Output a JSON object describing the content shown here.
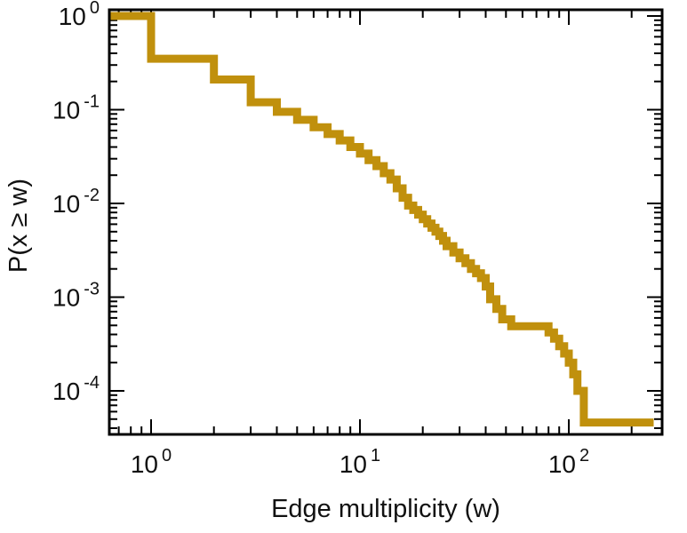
{
  "figure": {
    "background": "#ffffff",
    "frame_color": "#000000"
  },
  "chart_data": {
    "type": "line",
    "subtype": "ccdf-staircase",
    "title": "",
    "xlabel": "Edge multiplicity (w)",
    "ylabel": "P(x ≥ w)",
    "x_scale": "log",
    "y_scale": "log",
    "xlim": [
      0.63,
      283
    ],
    "ylim": [
      3.4e-05,
      1.19
    ],
    "grid": false,
    "legend": null,
    "line_color": "#c0900d",
    "line_width": 9,
    "x_ticks": [
      {
        "value": 1,
        "base": "10",
        "exp": "0"
      },
      {
        "value": 10,
        "base": "10",
        "exp": "1"
      },
      {
        "value": 100,
        "base": "10",
        "exp": "2"
      }
    ],
    "y_ticks": [
      {
        "value": 1,
        "base": "10",
        "exp": "0"
      },
      {
        "value": 0.1,
        "base": "10",
        "exp": "-1"
      },
      {
        "value": 0.01,
        "base": "10",
        "exp": "-2"
      },
      {
        "value": 0.001,
        "base": "10",
        "exp": "-3"
      },
      {
        "value": 0.0001,
        "base": "10",
        "exp": "-4"
      }
    ],
    "points": {
      "comment_w": "right edge of each flat level (edge multiplicity)",
      "comment_p": "CCDF level value P(x >= w) held up to that edge",
      "w": [
        1,
        2,
        3,
        4,
        5,
        6,
        7,
        8,
        9,
        10,
        11,
        12,
        13,
        14,
        15,
        16,
        17,
        18,
        19,
        20,
        21,
        22,
        23,
        24,
        25,
        26,
        28,
        30,
        32,
        34,
        36,
        38,
        40,
        42,
        45,
        48,
        53,
        80,
        85,
        90,
        95,
        100,
        105,
        110,
        118,
        255
      ],
      "p": [
        1,
        0.35,
        0.21,
        0.12,
        0.095,
        0.078,
        0.065,
        0.055,
        0.047,
        0.04,
        0.034,
        0.029,
        0.025,
        0.021,
        0.018,
        0.0145,
        0.0115,
        0.0095,
        0.0085,
        0.0076,
        0.0068,
        0.0061,
        0.0055,
        0.005,
        0.0045,
        0.004,
        0.0035,
        0.003,
        0.0026,
        0.0023,
        0.002,
        0.0018,
        0.0016,
        0.0013,
        0.00095,
        0.00075,
        0.00058,
        0.00049,
        0.00042,
        0.00036,
        0.0003,
        0.00025,
        0.0002,
        0.00015,
        0.0001,
        4.6e-05
      ]
    }
  }
}
